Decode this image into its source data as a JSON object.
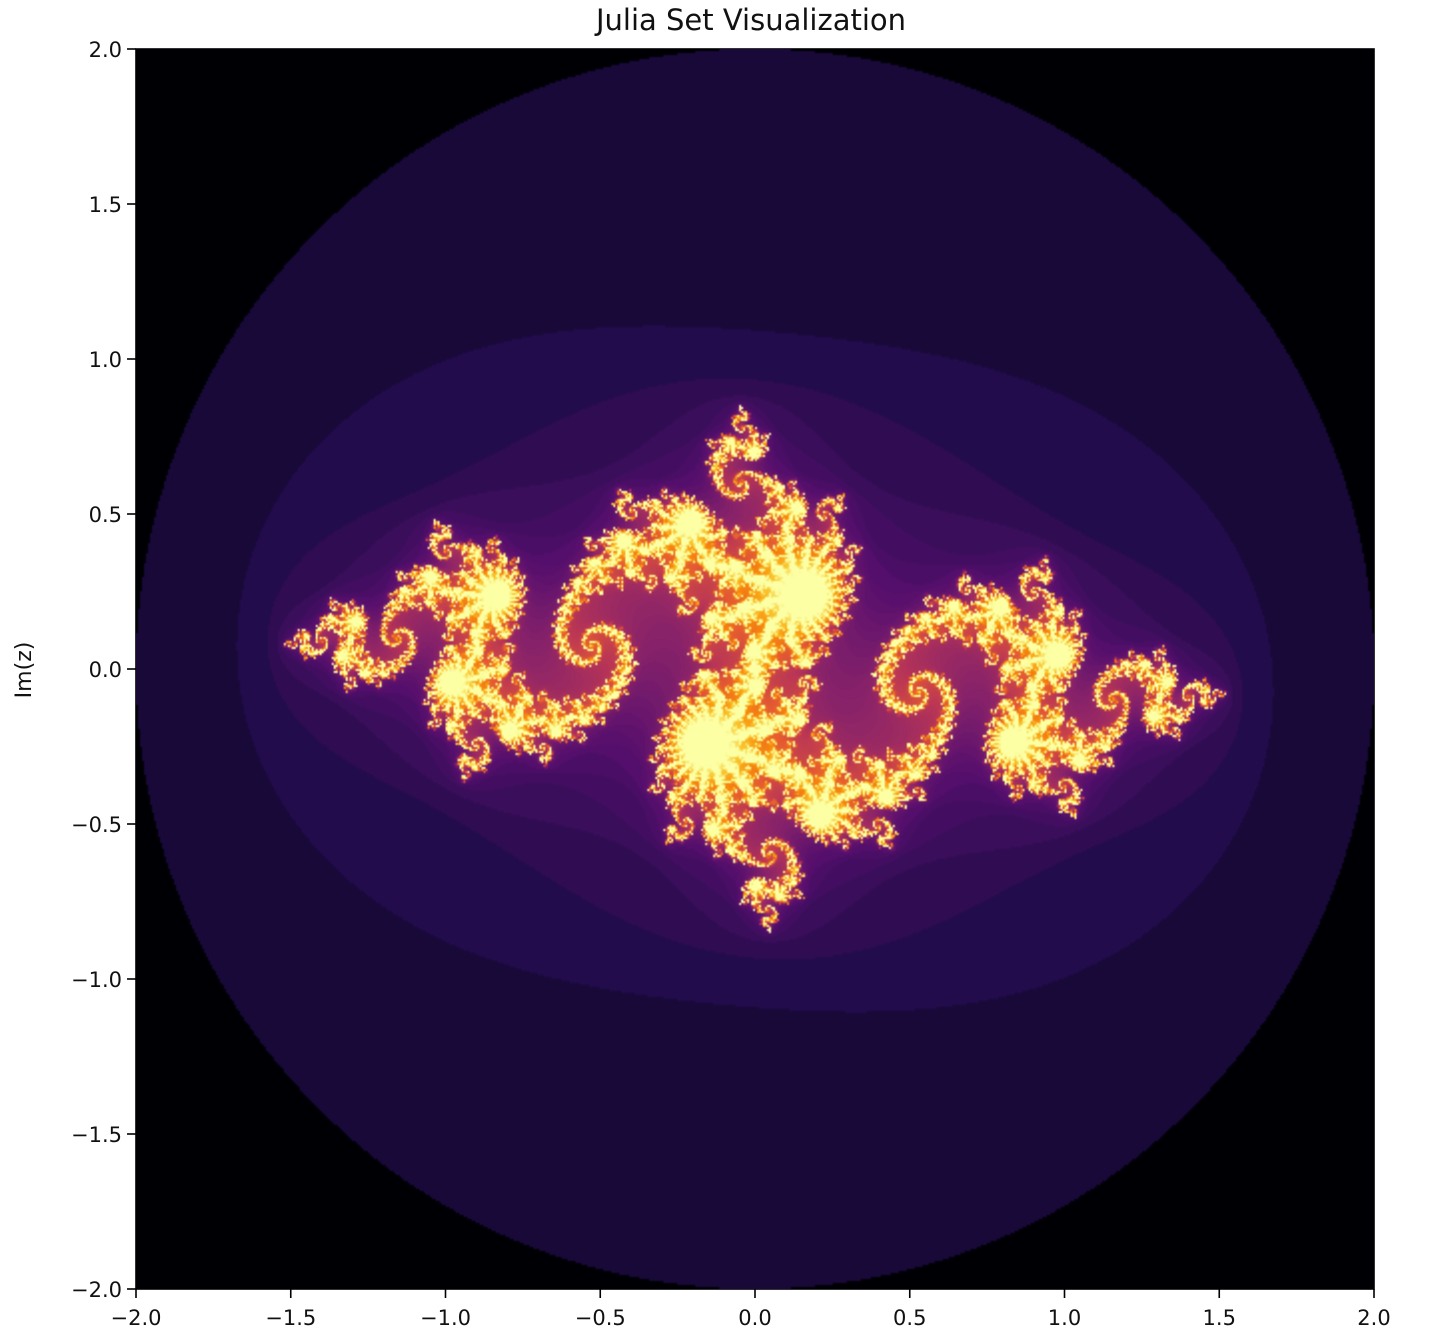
{
  "chart_data": {
    "type": "heatmap",
    "title": "Julia Set Visualization",
    "xlabel": "",
    "ylabel": "Im(z)",
    "xlim": [
      -2.0,
      2.0
    ],
    "ylim": [
      -2.0,
      2.0
    ],
    "x_ticks": [
      -2.0,
      -1.5,
      -1.0,
      -0.5,
      0.0,
      0.5,
      1.0,
      1.5,
      2.0
    ],
    "y_ticks": [
      -2.0,
      -1.5,
      -1.0,
      -0.5,
      0.0,
      0.5,
      1.0,
      1.5,
      2.0
    ],
    "x_tick_labels": [
      "−2.0",
      "−1.5",
      "−1.0",
      "−0.5",
      "0.0",
      "0.5",
      "1.0",
      "1.5",
      "2.0"
    ],
    "y_tick_labels": [
      "−2.0",
      "−1.5",
      "−1.0",
      "−0.5",
      "0.0",
      "0.5",
      "1.0",
      "1.5",
      "2.0"
    ],
    "colormap": "inferno",
    "grid": false,
    "escape_radius": 2.0,
    "colors": {
      "outside_radius": "#fcfea4",
      "background_interior": "#000004",
      "filament": "#fcfea4"
    }
  }
}
